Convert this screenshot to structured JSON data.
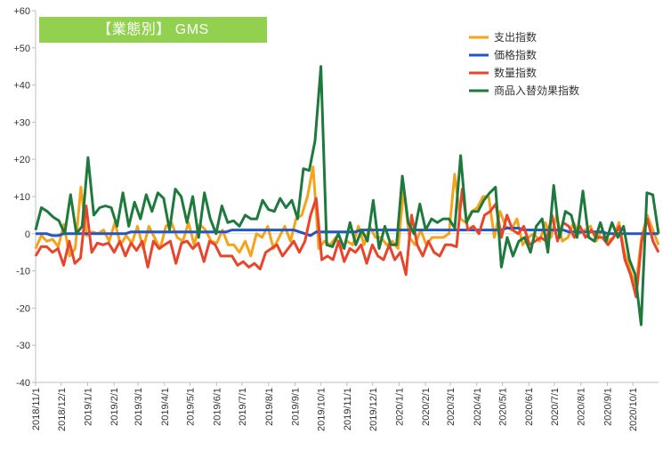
{
  "chart_data": {
    "type": "line",
    "title": "【業態別】 GMS",
    "xlabel": "",
    "ylabel": "",
    "ylim": [
      -40,
      60
    ],
    "yticks": [
      {
        "value": 60,
        "label": "+60"
      },
      {
        "value": 50,
        "label": "+50"
      },
      {
        "value": 40,
        "label": "+40"
      },
      {
        "value": 30,
        "label": "+30"
      },
      {
        "value": 20,
        "label": "+20"
      },
      {
        "value": 10,
        "label": "+10"
      },
      {
        "value": 0,
        "label": "0"
      },
      {
        "value": -10,
        "label": "-10"
      },
      {
        "value": -20,
        "label": "-20"
      },
      {
        "value": -30,
        "label": "-30"
      },
      {
        "value": -40,
        "label": "-40"
      }
    ],
    "x_ticks": [
      "2018/11/1",
      "2018/12/1",
      "2019/1/1",
      "2019/2/1",
      "2019/3/1",
      "2019/4/1",
      "2019/5/1",
      "2019/6/1",
      "2019/7/1",
      "2019/8/1",
      "2019/9/1",
      "2019/10/1",
      "2019/11/1",
      "2019/12/1",
      "2020/1/1",
      "2020/2/1",
      "2020/3/1",
      "2020/4/1",
      "2020/5/1",
      "2020/6/1",
      "2020/7/1",
      "2020/8/1",
      "2020/9/1",
      "2020/10/1"
    ],
    "x_start": "2018/11/1",
    "x_interval_days": 7,
    "grid": false,
    "legend_position": "top-right",
    "series": [
      {
        "name": "支出指数",
        "color": "#f5a31a",
        "values": [
          -4,
          -0.5,
          -2,
          -1.5,
          -3.5,
          2.5,
          -6,
          -4,
          12.5,
          -0.5,
          0.5,
          0,
          1,
          -2,
          3,
          -3,
          -0.5,
          -2.5,
          2,
          -4,
          2,
          -1,
          -4,
          2,
          3,
          -1,
          -2,
          3,
          -3,
          2.5,
          1,
          -2,
          -2.5,
          1,
          -3,
          -3,
          -5,
          -2,
          -6,
          0,
          -1,
          2,
          -4,
          -1,
          2,
          -2,
          4,
          5,
          10,
          18,
          -4,
          -2,
          -3,
          -1,
          -4,
          -2,
          -3,
          2,
          -3,
          2,
          -1,
          -1,
          -3,
          -2,
          -4,
          12,
          -1,
          -3,
          1,
          -3,
          -1,
          -1,
          -1,
          0,
          16,
          4,
          3,
          6,
          7,
          10,
          10,
          -1,
          6,
          2,
          1,
          4,
          -3,
          -1,
          0,
          -2,
          3,
          -1,
          5,
          -2,
          -1,
          3,
          0,
          1,
          2,
          -2,
          1,
          -2,
          -1,
          3,
          -5,
          -10,
          -14,
          -1,
          5,
          1,
          -3
        ]
      },
      {
        "name": "価格指数",
        "color": "#2255c8",
        "values": [
          0,
          0,
          0,
          -0.5,
          -0.5,
          0,
          0,
          0,
          0,
          0,
          0,
          0,
          0,
          0,
          0,
          0,
          0,
          0.5,
          0.5,
          0.5,
          0.5,
          0.5,
          0.5,
          0.5,
          0.5,
          0.5,
          0.5,
          0.5,
          0.5,
          0.5,
          0.5,
          0.5,
          0.5,
          0.5,
          0.5,
          1,
          1,
          1,
          1,
          1,
          1,
          1,
          1,
          1,
          1,
          1,
          1,
          0.5,
          0,
          -0.5,
          0.5,
          0.5,
          0.5,
          0.5,
          0.5,
          0.5,
          0.5,
          0.5,
          1,
          1,
          1,
          1,
          1,
          1,
          1,
          1,
          1,
          1,
          1,
          1,
          1,
          1,
          1,
          1,
          1,
          1,
          1,
          1,
          1,
          1,
          1,
          1,
          1,
          1,
          1.5,
          1.5,
          1.5,
          1,
          1,
          1,
          1,
          1,
          1,
          1,
          1,
          0.5,
          0.5,
          0.5,
          0.5,
          0.5,
          0.5,
          0.5,
          0,
          0,
          0,
          0,
          0,
          0,
          0,
          0,
          0,
          0
        ]
      },
      {
        "name": "数量指数",
        "color": "#e8452c",
        "values": [
          -6,
          -3.5,
          -3.5,
          -5,
          -4,
          -8.5,
          -2,
          -8,
          -6.5,
          7.5,
          -5,
          -2.5,
          -3,
          -2.5,
          -5,
          -2,
          -6,
          -2.5,
          -4.5,
          -2,
          -9,
          -2,
          -4,
          -3,
          -2,
          -8,
          -2.5,
          -2,
          -4,
          -2.5,
          -7.5,
          -2,
          -3,
          -6,
          -6,
          -6,
          -8.5,
          -7.5,
          -9,
          -8,
          -9.5,
          -5,
          -4,
          -3,
          -6,
          -4,
          -2,
          -5,
          -2,
          5,
          9.5,
          -7,
          -6,
          -7,
          -2,
          -7.5,
          -4,
          -5,
          -3,
          -8,
          -3,
          -6,
          -7,
          -3,
          -7,
          -5,
          -11,
          5,
          -3,
          -6,
          -2,
          -5,
          -6,
          -3,
          -3,
          -3.5,
          12,
          1,
          2,
          0,
          5,
          6,
          8,
          -1,
          5,
          1,
          0,
          2,
          -3,
          -2,
          -1,
          -2,
          5,
          -2,
          3,
          2,
          -1,
          2,
          -1,
          1,
          -1,
          -1,
          -3,
          -1,
          2,
          -7,
          -11,
          -17,
          -2,
          4,
          -2,
          -5
        ]
      },
      {
        "name": "商品入替効果指数",
        "color": "#1e7a3c",
        "values": [
          1,
          7,
          6,
          4.5,
          3.5,
          0,
          10.5,
          0,
          2,
          20.5,
          5,
          7,
          7.5,
          7,
          2,
          11,
          2,
          8.5,
          4,
          10.5,
          6,
          11,
          9.5,
          1,
          12,
          10,
          3,
          10,
          -1,
          11,
          4,
          0,
          7.5,
          3,
          3.5,
          2,
          5,
          4,
          4,
          9,
          6.5,
          6,
          9.5,
          7,
          9,
          4,
          17.5,
          17,
          25,
          45,
          -3,
          -3.5,
          0,
          -4,
          3,
          -3,
          1,
          -2,
          9,
          -4,
          2,
          -3,
          -3,
          15.5,
          3,
          0,
          8,
          1,
          4,
          3,
          4,
          4,
          1.5,
          21,
          3,
          6,
          6,
          9,
          11,
          12.5,
          -9,
          -1,
          -6,
          -2,
          -1,
          -5,
          2,
          4,
          -5,
          13,
          -1,
          6,
          5,
          -1,
          11.5,
          -1,
          -2,
          3,
          -2,
          3,
          -1,
          2,
          -7,
          -11,
          -24.5,
          11,
          10.5,
          0
        ]
      }
    ]
  }
}
